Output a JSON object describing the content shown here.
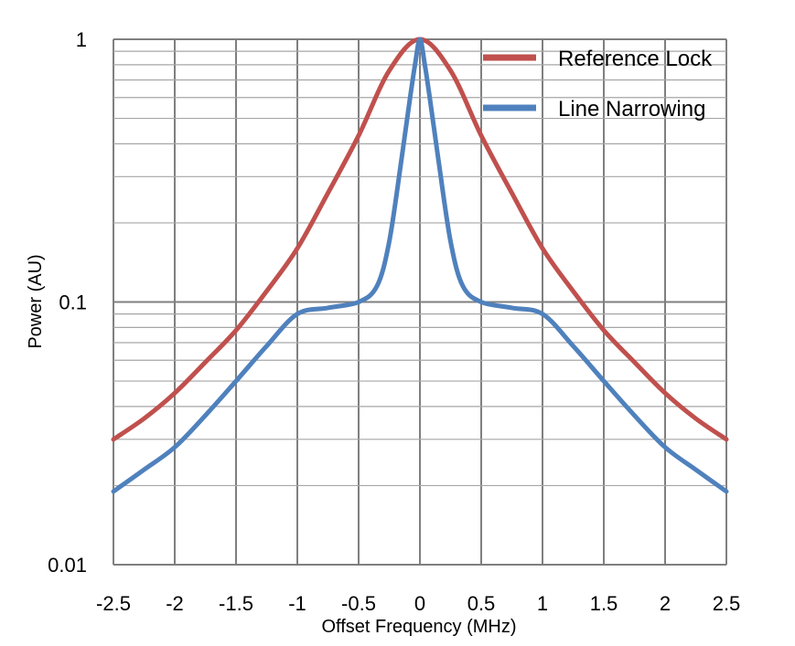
{
  "chart_data": {
    "type": "line",
    "xlabel": "Offset Frequency (MHz)",
    "ylabel": "Power (AU)",
    "xlim": [
      -2.5,
      2.5
    ],
    "ylim": [
      0.01,
      1
    ],
    "yscale": "log",
    "grid": true,
    "legend_position": "top-right",
    "x_ticks": [
      "-2.5",
      "-2",
      "-1.5",
      "-1",
      "-0.5",
      "0",
      "0.5",
      "1",
      "1.5",
      "2",
      "2.5"
    ],
    "y_ticks": [
      "0.01",
      "0.1",
      "1"
    ],
    "series": [
      {
        "name": "Reference Lock",
        "color": "#c0504d",
        "x": [
          -2.5,
          -2.25,
          -2,
          -1.75,
          -1.5,
          -1.25,
          -1,
          -0.75,
          -0.5,
          -0.25,
          0,
          0.25,
          0.5,
          0.75,
          1,
          1.25,
          1.5,
          1.75,
          2,
          2.25,
          2.5
        ],
        "y": [
          0.03,
          0.036,
          0.045,
          0.059,
          0.078,
          0.11,
          0.16,
          0.26,
          0.43,
          0.76,
          1.0,
          0.76,
          0.43,
          0.26,
          0.16,
          0.11,
          0.078,
          0.059,
          0.045,
          0.036,
          0.03
        ]
      },
      {
        "name": "Line Narrowing",
        "color": "#4f81bd",
        "x": [
          -2.5,
          -2.25,
          -2,
          -1.75,
          -1.5,
          -1.25,
          -1,
          -0.75,
          -0.5,
          -0.35,
          -0.25,
          -0.15,
          -0.08,
          -0.04,
          0,
          0.04,
          0.08,
          0.15,
          0.25,
          0.35,
          0.5,
          0.75,
          1,
          1.25,
          1.5,
          1.75,
          2,
          2.25,
          2.5
        ],
        "y": [
          0.019,
          0.023,
          0.028,
          0.037,
          0.05,
          0.068,
          0.09,
          0.095,
          0.1,
          0.115,
          0.17,
          0.35,
          0.6,
          0.8,
          1.0,
          0.8,
          0.6,
          0.35,
          0.17,
          0.115,
          0.1,
          0.095,
          0.09,
          0.068,
          0.05,
          0.037,
          0.028,
          0.023,
          0.019
        ]
      }
    ]
  }
}
